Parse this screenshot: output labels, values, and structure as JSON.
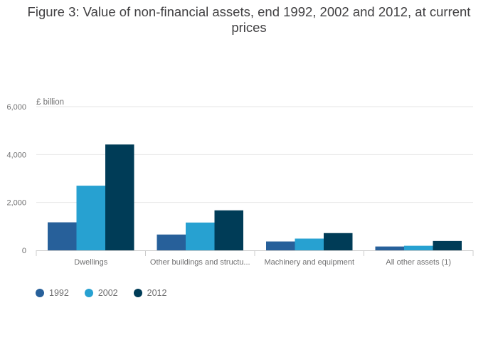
{
  "chart_data": {
    "type": "bar",
    "title": "Figure 3: Value of non-financial assets, end 1992, 2002 and 2012, at current prices",
    "ylabel": "£ billion",
    "xlabel": "",
    "categories": [
      "Dwellings",
      "Other buildings and structu...",
      "Machinery and equipment",
      "All other assets (1)"
    ],
    "series": [
      {
        "name": "1992",
        "color": "#27609a",
        "values": [
          1170,
          660,
          370,
          160
        ]
      },
      {
        "name": "2002",
        "color": "#27a1d1",
        "values": [
          2700,
          1160,
          490,
          190
        ]
      },
      {
        "name": "2012",
        "color": "#003c57",
        "values": [
          4420,
          1670,
          720,
          390
        ]
      }
    ],
    "ylim": [
      0,
      6000
    ],
    "yticks": [
      0,
      2000,
      4000,
      6000
    ],
    "ytick_labels": [
      "0",
      "2,000",
      "4,000",
      "6,000"
    ],
    "grid": true,
    "legend_position": "bottom-left"
  }
}
